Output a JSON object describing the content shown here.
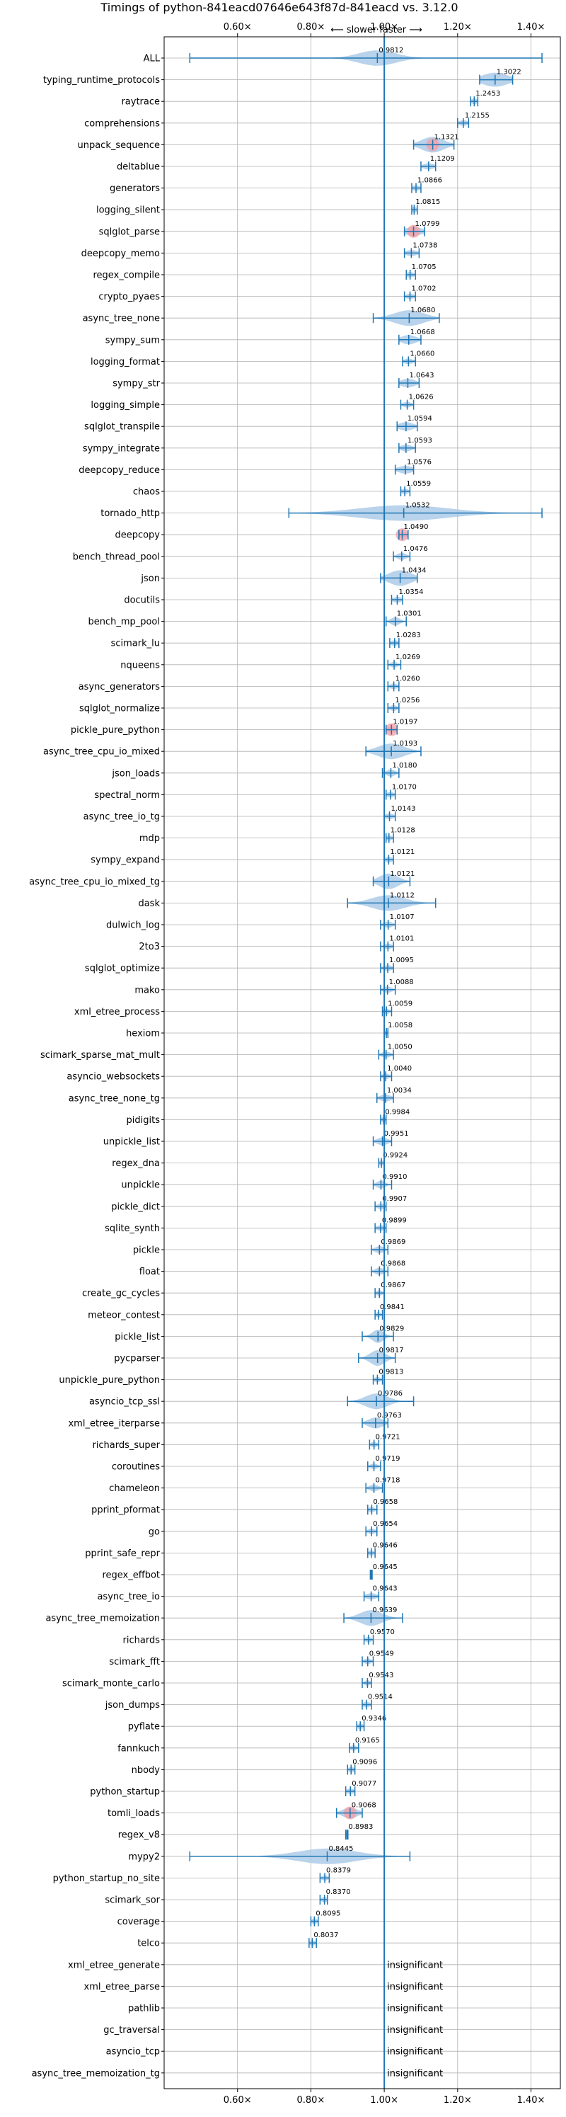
{
  "chart_data": {
    "type": "violin",
    "orientation": "horizontal",
    "title": "Timings of python-841eacd07646e643f87d-841eacd vs. 3.12.0",
    "annotation_top": "⟵ slower   faster ⟶",
    "xlim": [
      0.4,
      1.48
    ],
    "x_ticks": [
      0.6,
      0.8,
      1.0,
      1.2,
      1.4
    ],
    "x_tick_labels": [
      "0.60×",
      "0.80×",
      "1.00×",
      "1.20×",
      "1.40×"
    ],
    "reference_line": 1.0,
    "grid": true,
    "insignificant_label": "insignificant",
    "colors": {
      "violin": "#a6c8e6",
      "line": "#1f77b4",
      "reference": "#1f77b4",
      "highlight": "#f4a0a8",
      "grid": "#b0b0b0"
    },
    "benchmarks": [
      {
        "name": "ALL",
        "median": 0.9812,
        "min": 0.47,
        "max": 1.43,
        "spread": 0.05
      },
      {
        "name": "typing_runtime_protocols",
        "median": 1.3022,
        "min": 1.26,
        "max": 1.35,
        "spread": 0.035
      },
      {
        "name": "raytrace",
        "median": 1.2453,
        "min": 1.235,
        "max": 1.255,
        "spread": 0.01
      },
      {
        "name": "comprehensions",
        "median": 1.2155,
        "min": 1.2,
        "max": 1.23,
        "spread": 0.012
      },
      {
        "name": "unpack_sequence",
        "median": 1.1321,
        "min": 1.08,
        "max": 1.19,
        "spread": 0.03,
        "highlight": true
      },
      {
        "name": "deltablue",
        "median": 1.1209,
        "min": 1.1,
        "max": 1.14,
        "spread": 0.015
      },
      {
        "name": "generators",
        "median": 1.0866,
        "min": 1.075,
        "max": 1.1,
        "spread": 0.01
      },
      {
        "name": "logging_silent",
        "median": 1.0815,
        "min": 1.075,
        "max": 1.09,
        "spread": 0.008
      },
      {
        "name": "sqlglot_parse",
        "median": 1.0799,
        "min": 1.055,
        "max": 1.11,
        "spread": 0.025,
        "highlight": true
      },
      {
        "name": "deepcopy_memo",
        "median": 1.0738,
        "min": 1.055,
        "max": 1.095,
        "spread": 0.015
      },
      {
        "name": "regex_compile",
        "median": 1.0705,
        "min": 1.06,
        "max": 1.085,
        "spread": 0.01
      },
      {
        "name": "crypto_pyaes",
        "median": 1.0702,
        "min": 1.055,
        "max": 1.085,
        "spread": 0.01
      },
      {
        "name": "async_tree_none",
        "median": 1.068,
        "min": 0.97,
        "max": 1.15,
        "spread": 0.04
      },
      {
        "name": "sympy_sum",
        "median": 1.0668,
        "min": 1.04,
        "max": 1.1,
        "spread": 0.02
      },
      {
        "name": "logging_format",
        "median": 1.066,
        "min": 1.05,
        "max": 1.085,
        "spread": 0.012
      },
      {
        "name": "sympy_str",
        "median": 1.0643,
        "min": 1.04,
        "max": 1.095,
        "spread": 0.02
      },
      {
        "name": "logging_simple",
        "median": 1.0626,
        "min": 1.045,
        "max": 1.08,
        "spread": 0.012
      },
      {
        "name": "sqlglot_transpile",
        "median": 1.0594,
        "min": 1.035,
        "max": 1.09,
        "spread": 0.02
      },
      {
        "name": "sympy_integrate",
        "median": 1.0593,
        "min": 1.04,
        "max": 1.085,
        "spread": 0.015
      },
      {
        "name": "deepcopy_reduce",
        "median": 1.0576,
        "min": 1.03,
        "max": 1.08,
        "spread": 0.02
      },
      {
        "name": "chaos",
        "median": 1.0559,
        "min": 1.045,
        "max": 1.07,
        "spread": 0.01
      },
      {
        "name": "tornado_http",
        "median": 1.0532,
        "min": 0.74,
        "max": 1.43,
        "spread": 0.12
      },
      {
        "name": "deepcopy",
        "median": 1.049,
        "min": 1.04,
        "max": 1.065,
        "spread": 0.012,
        "highlight": true
      },
      {
        "name": "bench_thread_pool",
        "median": 1.0476,
        "min": 1.025,
        "max": 1.07,
        "spread": 0.012
      },
      {
        "name": "json",
        "median": 1.0434,
        "min": 0.99,
        "max": 1.09,
        "spread": 0.03
      },
      {
        "name": "docutils",
        "median": 1.0354,
        "min": 1.02,
        "max": 1.05,
        "spread": 0.012
      },
      {
        "name": "bench_mp_pool",
        "median": 1.0301,
        "min": 1.005,
        "max": 1.06,
        "spread": 0.012
      },
      {
        "name": "scimark_lu",
        "median": 1.0283,
        "min": 1.015,
        "max": 1.04,
        "spread": 0.01
      },
      {
        "name": "nqueens",
        "median": 1.0269,
        "min": 1.01,
        "max": 1.045,
        "spread": 0.01
      },
      {
        "name": "async_generators",
        "median": 1.026,
        "min": 1.01,
        "max": 1.04,
        "spread": 0.01
      },
      {
        "name": "sqlglot_normalize",
        "median": 1.0256,
        "min": 1.01,
        "max": 1.04,
        "spread": 0.01
      },
      {
        "name": "pickle_pure_python",
        "median": 1.0197,
        "min": 1.005,
        "max": 1.035,
        "spread": 0.012,
        "highlight": true
      },
      {
        "name": "async_tree_cpu_io_mixed",
        "median": 1.0193,
        "min": 0.95,
        "max": 1.1,
        "spread": 0.035
      },
      {
        "name": "json_loads",
        "median": 1.018,
        "min": 0.995,
        "max": 1.04,
        "spread": 0.012
      },
      {
        "name": "spectral_norm",
        "median": 1.017,
        "min": 1.005,
        "max": 1.03,
        "spread": 0.01
      },
      {
        "name": "async_tree_io_tg",
        "median": 1.0143,
        "min": 1.0,
        "max": 1.03,
        "spread": 0.012
      },
      {
        "name": "mdp",
        "median": 1.0128,
        "min": 1.005,
        "max": 1.025,
        "spread": 0.008
      },
      {
        "name": "sympy_expand",
        "median": 1.0121,
        "min": 1.0,
        "max": 1.025,
        "spread": 0.01
      },
      {
        "name": "async_tree_cpu_io_mixed_tg",
        "median": 1.0121,
        "min": 0.97,
        "max": 1.07,
        "spread": 0.025
      },
      {
        "name": "dask",
        "median": 1.0112,
        "min": 0.9,
        "max": 1.14,
        "spread": 0.045
      },
      {
        "name": "dulwich_log",
        "median": 1.0107,
        "min": 0.99,
        "max": 1.03,
        "spread": 0.012
      },
      {
        "name": "2to3",
        "median": 1.0101,
        "min": 0.99,
        "max": 1.025,
        "spread": 0.01
      },
      {
        "name": "sqlglot_optimize",
        "median": 1.0095,
        "min": 0.99,
        "max": 1.025,
        "spread": 0.012
      },
      {
        "name": "mako",
        "median": 1.0088,
        "min": 0.99,
        "max": 1.03,
        "spread": 0.012
      },
      {
        "name": "xml_etree_process",
        "median": 1.0059,
        "min": 0.995,
        "max": 1.02,
        "spread": 0.008
      },
      {
        "name": "hexiom",
        "median": 1.0058,
        "min": 1.0,
        "max": 1.01,
        "spread": 0.005
      },
      {
        "name": "scimark_sparse_mat_mult",
        "median": 1.005,
        "min": 0.985,
        "max": 1.025,
        "spread": 0.012
      },
      {
        "name": "asyncio_websockets",
        "median": 1.004,
        "min": 0.99,
        "max": 1.02,
        "spread": 0.01
      },
      {
        "name": "async_tree_none_tg",
        "median": 1.0034,
        "min": 0.98,
        "max": 1.025,
        "spread": 0.015
      },
      {
        "name": "pidigits",
        "median": 0.9984,
        "min": 0.99,
        "max": 1.005,
        "spread": 0.006
      },
      {
        "name": "unpickle_list",
        "median": 0.9951,
        "min": 0.97,
        "max": 1.02,
        "spread": 0.015
      },
      {
        "name": "regex_dna",
        "median": 0.9924,
        "min": 0.985,
        "max": 1.0,
        "spread": 0.006
      },
      {
        "name": "unpickle",
        "median": 0.991,
        "min": 0.97,
        "max": 1.02,
        "spread": 0.012
      },
      {
        "name": "pickle_dict",
        "median": 0.9907,
        "min": 0.975,
        "max": 1.005,
        "spread": 0.01
      },
      {
        "name": "sqlite_synth",
        "median": 0.9899,
        "min": 0.975,
        "max": 1.005,
        "spread": 0.01
      },
      {
        "name": "pickle",
        "median": 0.9869,
        "min": 0.965,
        "max": 1.01,
        "spread": 0.012
      },
      {
        "name": "float",
        "median": 0.9868,
        "min": 0.965,
        "max": 1.01,
        "spread": 0.012
      },
      {
        "name": "create_gc_cycles",
        "median": 0.9867,
        "min": 0.975,
        "max": 1.0,
        "spread": 0.008
      },
      {
        "name": "meteor_contest",
        "median": 0.9841,
        "min": 0.975,
        "max": 0.995,
        "spread": 0.006
      },
      {
        "name": "pickle_list",
        "median": 0.9829,
        "min": 0.94,
        "max": 1.025,
        "spread": 0.015
      },
      {
        "name": "pycparser",
        "median": 0.9817,
        "min": 0.93,
        "max": 1.03,
        "spread": 0.02
      },
      {
        "name": "unpickle_pure_python",
        "median": 0.9813,
        "min": 0.97,
        "max": 0.995,
        "spread": 0.008
      },
      {
        "name": "asyncio_tcp_ssl",
        "median": 0.9786,
        "min": 0.9,
        "max": 1.08,
        "spread": 0.03
      },
      {
        "name": "xml_etree_iterparse",
        "median": 0.9763,
        "min": 0.94,
        "max": 1.01,
        "spread": 0.02
      },
      {
        "name": "richards_super",
        "median": 0.9721,
        "min": 0.96,
        "max": 0.985,
        "spread": 0.008
      },
      {
        "name": "coroutines",
        "median": 0.9719,
        "min": 0.955,
        "max": 0.99,
        "spread": 0.01
      },
      {
        "name": "chameleon",
        "median": 0.9718,
        "min": 0.95,
        "max": 0.995,
        "spread": 0.012
      },
      {
        "name": "pprint_pformat",
        "median": 0.9658,
        "min": 0.955,
        "max": 0.98,
        "spread": 0.008
      },
      {
        "name": "go",
        "median": 0.9654,
        "min": 0.95,
        "max": 0.98,
        "spread": 0.01
      },
      {
        "name": "pprint_safe_repr",
        "median": 0.9646,
        "min": 0.955,
        "max": 0.975,
        "spread": 0.007
      },
      {
        "name": "regex_effbot",
        "median": 0.9645,
        "min": 0.962,
        "max": 0.967,
        "spread": 0.002
      },
      {
        "name": "async_tree_io",
        "median": 0.9643,
        "min": 0.945,
        "max": 0.985,
        "spread": 0.015
      },
      {
        "name": "async_tree_memoization",
        "median": 0.9639,
        "min": 0.89,
        "max": 1.05,
        "spread": 0.03
      },
      {
        "name": "richards",
        "median": 0.957,
        "min": 0.945,
        "max": 0.97,
        "spread": 0.008
      },
      {
        "name": "scimark_fft",
        "median": 0.9549,
        "min": 0.94,
        "max": 0.97,
        "spread": 0.01
      },
      {
        "name": "scimark_monte_carlo",
        "median": 0.9543,
        "min": 0.94,
        "max": 0.965,
        "spread": 0.008
      },
      {
        "name": "json_dumps",
        "median": 0.9514,
        "min": 0.94,
        "max": 0.965,
        "spread": 0.01
      },
      {
        "name": "pyflate",
        "median": 0.9346,
        "min": 0.925,
        "max": 0.945,
        "spread": 0.008
      },
      {
        "name": "fannkuch",
        "median": 0.9165,
        "min": 0.905,
        "max": 0.93,
        "spread": 0.008
      },
      {
        "name": "nbody",
        "median": 0.9096,
        "min": 0.9,
        "max": 0.92,
        "spread": 0.008
      },
      {
        "name": "python_startup",
        "median": 0.9077,
        "min": 0.895,
        "max": 0.92,
        "spread": 0.01
      },
      {
        "name": "tomli_loads",
        "median": 0.9068,
        "min": 0.87,
        "max": 0.94,
        "spread": 0.02,
        "highlight": true
      },
      {
        "name": "regex_v8",
        "median": 0.8983,
        "min": 0.895,
        "max": 0.901,
        "spread": 0.003
      },
      {
        "name": "mypy2",
        "median": 0.8445,
        "min": 0.47,
        "max": 1.07,
        "spread": 0.08
      },
      {
        "name": "python_startup_no_site",
        "median": 0.8379,
        "min": 0.825,
        "max": 0.85,
        "spread": 0.008
      },
      {
        "name": "scimark_sor",
        "median": 0.837,
        "min": 0.825,
        "max": 0.845,
        "spread": 0.008
      },
      {
        "name": "coverage",
        "median": 0.8095,
        "min": 0.8,
        "max": 0.82,
        "spread": 0.007
      },
      {
        "name": "telco",
        "median": 0.8037,
        "min": 0.795,
        "max": 0.815,
        "spread": 0.007
      },
      {
        "name": "xml_etree_generate",
        "insignificant": true
      },
      {
        "name": "xml_etree_parse",
        "insignificant": true
      },
      {
        "name": "pathlib",
        "insignificant": true
      },
      {
        "name": "gc_traversal",
        "insignificant": true
      },
      {
        "name": "asyncio_tcp",
        "insignificant": true
      },
      {
        "name": "async_tree_memoization_tg",
        "insignificant": true
      }
    ]
  }
}
